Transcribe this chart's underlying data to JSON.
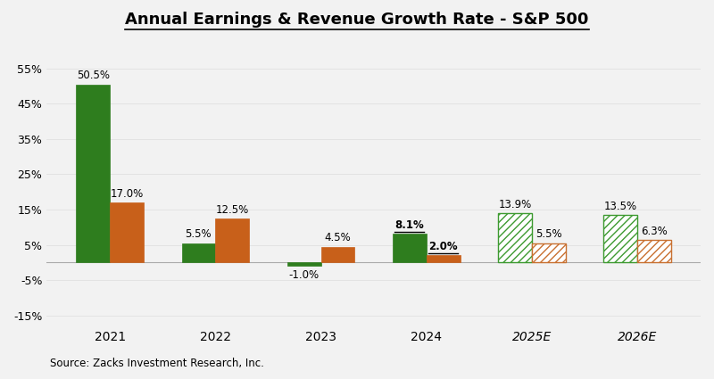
{
  "categories": [
    "2021",
    "2022",
    "2023",
    "2024",
    "2025E",
    "2026E"
  ],
  "earnings": [
    50.5,
    5.5,
    -1.0,
    8.1,
    13.9,
    13.5
  ],
  "revenue": [
    17.0,
    12.5,
    4.5,
    2.0,
    5.5,
    6.3
  ],
  "earnings_solid": "#2e7d1e",
  "revenue_solid": "#c8601a",
  "earnings_hatch_ec": "#3d9a30",
  "revenue_hatch_ec": "#c87030",
  "title": "Annual Earnings & Revenue Growth Rate - S&P 500",
  "source": "Source: Zacks Investment Research, Inc.",
  "ylim": [
    -18,
    62
  ],
  "yticks": [
    -15,
    -5,
    5,
    15,
    25,
    35,
    45,
    55
  ],
  "ytick_labels": [
    "-15%",
    "-5%",
    "5%",
    "15%",
    "25%",
    "35%",
    "45%",
    "55%"
  ],
  "bg": "#f2f2f2",
  "bw": 0.32,
  "label_fs": 8.5,
  "title_fs": 13,
  "source_fs": 8.5,
  "tick_fs": 9,
  "xtick_fs": 10
}
